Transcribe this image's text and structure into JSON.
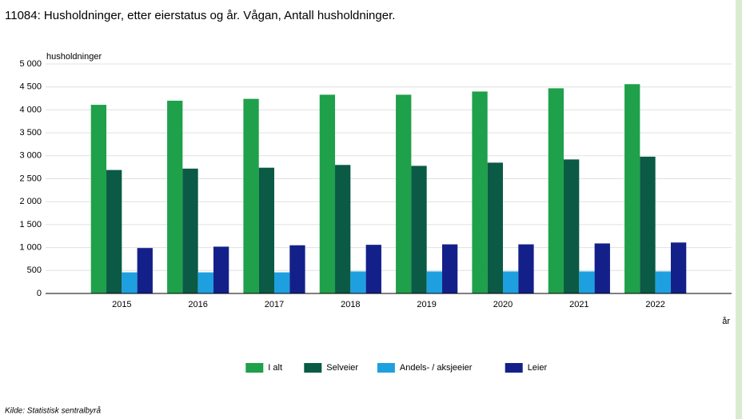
{
  "chart_data": {
    "type": "bar",
    "title": "11084: Husholdninger, etter eierstatus og år. Vågan, Antall husholdninger.",
    "y_label": "husholdninger",
    "x_label": "år",
    "source": "Kilde:  Statistisk sentralbyrå",
    "categories": [
      "2015",
      "2016",
      "2017",
      "2018",
      "2019",
      "2020",
      "2021",
      "2022"
    ],
    "series": [
      {
        "name": "I alt",
        "color": "#1fa04a",
        "values": [
          4110,
          4200,
          4240,
          4330,
          4330,
          4400,
          4470,
          4560
        ]
      },
      {
        "name": "Selveier",
        "color": "#0a5a45",
        "values": [
          2690,
          2720,
          2740,
          2800,
          2780,
          2850,
          2920,
          2980
        ]
      },
      {
        "name": "Andels- / aksjeeier",
        "color": "#1ea0e0",
        "values": [
          460,
          460,
          460,
          480,
          480,
          480,
          480,
          480
        ]
      },
      {
        "name": "Leier",
        "color": "#14208a",
        "values": [
          990,
          1020,
          1050,
          1060,
          1070,
          1070,
          1090,
          1110
        ]
      }
    ],
    "ylim": [
      0,
      5000
    ],
    "yticks": [
      0,
      500,
      {
        "value": 1000,
        "label": "1 000"
      },
      {
        "value": 1500,
        "label": "1 500"
      },
      {
        "value": 2000,
        "label": "2 000"
      },
      {
        "value": 2500,
        "label": "2 500"
      },
      {
        "value": 3000,
        "label": "3 000"
      },
      {
        "value": 3500,
        "label": "3 500"
      },
      {
        "value": 4000,
        "label": "4 000"
      },
      {
        "value": 4500,
        "label": "4 500"
      },
      {
        "value": 5000,
        "label": "5 000"
      }
    ],
    "grid": true
  }
}
